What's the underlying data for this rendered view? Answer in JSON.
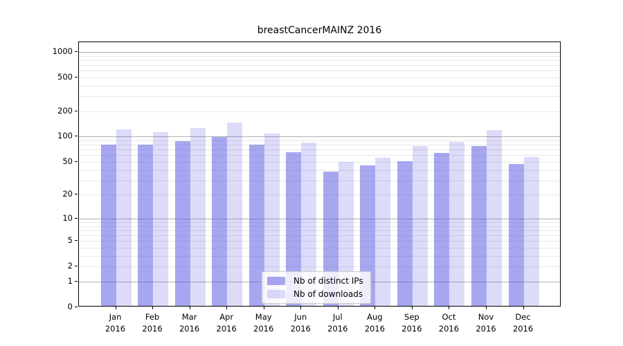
{
  "title": "breastCancerMAINZ 2016",
  "chart_data": {
    "type": "bar",
    "title": "breastCancerMAINZ 2016",
    "categories": [
      "Jan 2016",
      "Feb 2016",
      "Mar 2016",
      "Apr 2016",
      "May 2016",
      "Jun 2016",
      "Jul 2016",
      "Aug 2016",
      "Sep 2016",
      "Oct 2016",
      "Nov 2016",
      "Dec 2016"
    ],
    "series": [
      {
        "name": "Nb of distinct IPs",
        "color": "rgba(80,80,225,0.5)",
        "values": [
          78,
          77,
          85,
          96,
          77,
          63,
          37,
          44,
          49,
          62,
          74,
          45
        ]
      },
      {
        "name": "Nb of downloads",
        "color": "rgba(80,80,225,0.2)",
        "values": [
          118,
          108,
          123,
          143,
          105,
          82,
          48,
          54,
          74,
          84,
          115,
          55
        ]
      }
    ],
    "xlabel": "",
    "ylabel": "",
    "yticks": [
      0,
      1,
      2,
      5,
      10,
      20,
      50,
      100,
      200,
      500,
      1000
    ],
    "ylim": [
      0,
      1300
    ],
    "yscale": "log10(1+y)",
    "grid": "on",
    "major_grid_values": [
      1,
      10,
      100,
      1000
    ],
    "major_grid_color": "#b0b0b0",
    "minor_grid_color": "#e8e8e8",
    "legend_position": "lower center inside",
    "frame_color": "#000000"
  }
}
